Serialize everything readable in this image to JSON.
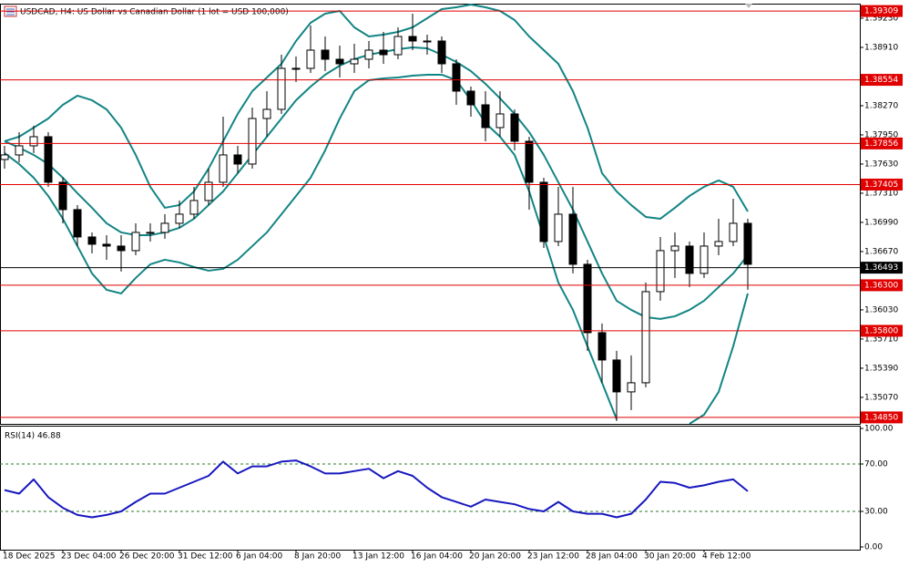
{
  "chart_data": [
    {
      "type": "candlestick",
      "title": "USDCAD, H4:  US Dollar vs Canadian Dollar (1 lot = USD 100,000)",
      "categories": [
        "18 Dec 2025",
        null,
        null,
        null,
        "23 Dec 04:00",
        null,
        null,
        null,
        "26 Dec 20:00",
        null,
        null,
        null,
        "31 Dec 12:00",
        null,
        null,
        null,
        "6 Jan 04:00",
        null,
        null,
        null,
        "8 Jan 20:00",
        null,
        null,
        null,
        "13 Jan 12:00",
        null,
        null,
        null,
        "16 Jan 04:00",
        null,
        null,
        null,
        "20 Jan 20:00",
        null,
        null,
        null,
        "23 Jan 12:00",
        null,
        null,
        null,
        "28 Jan 04:00",
        null,
        null,
        null,
        "30 Jan 20:00",
        null,
        null,
        null,
        "4 Feb 12:00",
        null,
        null,
        null
      ],
      "open": [
        1.3768,
        1.3773,
        1.3783,
        1.3793,
        1.3743,
        1.3713,
        1.3683,
        1.3675,
        1.3673,
        1.3668,
        1.3688,
        1.3688,
        1.3698,
        1.3708,
        1.3723,
        1.3743,
        1.3773,
        1.3763,
        1.3813,
        1.3823,
        1.3868,
        1.3868,
        1.3888,
        1.3878,
        1.3873,
        1.3878,
        1.3888,
        1.3883,
        1.3903,
        1.3898,
        1.3898,
        1.3873,
        1.3843,
        1.3828,
        1.3803,
        1.3818,
        1.3788,
        1.3743,
        1.3678,
        1.3708,
        1.3653,
        1.3578,
        1.3548,
        1.3513,
        1.3523,
        1.3623,
        1.3668,
        1.3673,
        1.3643,
        1.3673,
        1.3678,
        1.3698
      ],
      "high": [
        1.3783,
        1.3798,
        1.3805,
        1.3798,
        1.3748,
        1.3718,
        1.3688,
        1.3685,
        1.3685,
        1.3698,
        1.3698,
        1.3708,
        1.3723,
        1.3738,
        1.3758,
        1.3815,
        1.3783,
        1.3825,
        1.3843,
        1.3883,
        1.3881,
        1.3915,
        1.3903,
        1.3893,
        1.3895,
        1.3898,
        1.3908,
        1.3913,
        1.3928,
        1.3905,
        1.3903,
        1.3878,
        1.3848,
        1.3843,
        1.3843,
        1.3823,
        1.3793,
        1.3748,
        1.3738,
        1.3738,
        1.3658,
        1.3588,
        1.3558,
        1.3553,
        1.3633,
        1.3683,
        1.3688,
        1.3678,
        1.3688,
        1.3703,
        1.3725,
        1.3703
      ],
      "low": [
        1.3758,
        1.3765,
        1.3775,
        1.3738,
        1.3698,
        1.3673,
        1.3665,
        1.3658,
        1.3645,
        1.3663,
        1.3678,
        1.3681,
        1.3693,
        1.3703,
        1.3718,
        1.3738,
        1.3753,
        1.3758,
        1.3793,
        1.3818,
        1.3853,
        1.3863,
        1.3865,
        1.3858,
        1.3863,
        1.3868,
        1.3873,
        1.3878,
        1.3888,
        1.3883,
        1.3863,
        1.3828,
        1.3815,
        1.3788,
        1.3793,
        1.3778,
        1.3713,
        1.3671,
        1.3673,
        1.3643,
        1.3558,
        1.3523,
        1.3481,
        1.3493,
        1.3518,
        1.3613,
        1.3638,
        1.3628,
        1.3638,
        1.3663,
        1.3673,
        1.3625
      ],
      "close": [
        1.3773,
        1.3783,
        1.3793,
        1.3743,
        1.3713,
        1.3683,
        1.3675,
        1.3673,
        1.3668,
        1.3688,
        1.3688,
        1.3698,
        1.3708,
        1.3723,
        1.3743,
        1.3773,
        1.3763,
        1.3813,
        1.3823,
        1.3868,
        1.3868,
        1.3888,
        1.3878,
        1.3873,
        1.3878,
        1.3888,
        1.3883,
        1.3903,
        1.3898,
        1.3898,
        1.3873,
        1.3843,
        1.3828,
        1.3803,
        1.3818,
        1.3788,
        1.3743,
        1.3678,
        1.3708,
        1.3653,
        1.3578,
        1.3548,
        1.3513,
        1.3523,
        1.3623,
        1.3668,
        1.3673,
        1.3643,
        1.3673,
        1.3678,
        1.3698,
        1.3653
      ],
      "upper": [
        1.3788,
        1.3793,
        1.3803,
        1.3813,
        1.3828,
        1.3838,
        1.3833,
        1.3823,
        1.3803,
        1.3773,
        1.3738,
        1.3715,
        1.3718,
        1.3733,
        1.3758,
        1.3788,
        1.3818,
        1.3843,
        1.3858,
        1.3873,
        1.3898,
        1.3918,
        1.3928,
        1.3931,
        1.3913,
        1.3903,
        1.3905,
        1.3908,
        1.3913,
        1.3923,
        1.3933,
        1.3935,
        1.3938,
        1.3935,
        1.3931,
        1.3921,
        1.3903,
        1.3888,
        1.3873,
        1.3843,
        1.3803,
        1.3753,
        1.3733,
        1.3718,
        1.3705,
        1.3703,
        1.3715,
        1.3728,
        1.3738,
        1.3745,
        1.3738,
        1.3711
      ],
      "middle": [
        1.3788,
        1.3781,
        1.3773,
        1.3763,
        1.3748,
        1.3731,
        1.3715,
        1.3698,
        1.3688,
        1.3685,
        1.3685,
        1.3688,
        1.3693,
        1.3703,
        1.3718,
        1.3733,
        1.3753,
        1.3773,
        1.3793,
        1.3813,
        1.3833,
        1.3848,
        1.3861,
        1.3871,
        1.3878,
        1.3883,
        1.3886,
        1.3889,
        1.3891,
        1.389,
        1.3883,
        1.3875,
        1.3865,
        1.3851,
        1.3835,
        1.3818,
        1.3798,
        1.3773,
        1.3743,
        1.3713,
        1.3678,
        1.3643,
        1.3613,
        1.3603,
        1.3595,
        1.3593,
        1.3596,
        1.3603,
        1.3613,
        1.3628,
        1.3643,
        1.3663
      ],
      "lower": [
        1.3775,
        1.3763,
        1.3748,
        1.3728,
        1.3703,
        1.3673,
        1.3643,
        1.3625,
        1.3621,
        1.3638,
        1.3653,
        1.3658,
        1.3655,
        1.365,
        1.3646,
        1.3648,
        1.3658,
        1.3673,
        1.3688,
        1.3708,
        1.3728,
        1.3748,
        1.3778,
        1.3813,
        1.3843,
        1.3855,
        1.3857,
        1.3858,
        1.386,
        1.3861,
        1.3861,
        1.3855,
        1.3833,
        1.3808,
        1.3793,
        1.3773,
        1.3733,
        1.3683,
        1.3633,
        1.3603,
        1.3563,
        1.3523,
        1.3483,
        null,
        null,
        null,
        null,
        1.3478,
        1.3488,
        1.3513,
        1.3563,
        1.3621
      ],
      "band_color": "#138484",
      "ylim": [
        1.34779,
        1.3939
      ],
      "yticks": [
        {
          "value": 1.3923,
          "label": "1.39230"
        },
        {
          "value": 1.3891,
          "label": "1.38910"
        },
        {
          "value": 1.3827,
          "label": "1.38270"
        },
        {
          "value": 1.3795,
          "label": "1.37950"
        },
        {
          "value": 1.3763,
          "label": "1.37630"
        },
        {
          "value": 1.3731,
          "label": "1.37310"
        },
        {
          "value": 1.3699,
          "label": "1.36990"
        },
        {
          "value": 1.3667,
          "label": "1.36670"
        },
        {
          "value": 1.3603,
          "label": "1.36030"
        },
        {
          "value": 1.3571,
          "label": "1.35710"
        },
        {
          "value": 1.3539,
          "label": "1.35390"
        },
        {
          "value": 1.3507,
          "label": "1.35070"
        }
      ],
      "hlines": [
        1.39309,
        1.38554,
        1.37856,
        1.37405,
        {
          "value": 1.363,
          "label": "1.36300"
        },
        {
          "value": 1.358,
          "label": "1.35800"
        },
        {
          "value": 1.3485,
          "label": "1.34850"
        }
      ],
      "hline_color": "#e00000",
      "price_line": 1.36493,
      "price_line_color": "#000000"
    },
    {
      "type": "line",
      "title": "RSI(14) 46.88",
      "values": [
        48,
        45,
        57,
        42,
        33,
        27,
        25,
        27,
        30,
        38,
        45,
        45,
        50,
        55,
        60,
        72,
        62,
        68,
        68,
        72,
        73,
        68,
        62,
        62,
        64,
        66,
        58,
        64,
        60,
        50,
        42,
        38,
        34,
        40,
        38,
        36,
        32,
        30,
        38,
        30,
        28,
        28,
        25,
        28,
        40,
        55,
        54,
        50,
        52,
        55,
        57,
        47
      ],
      "color": "#1818c0",
      "ylim": [
        -2.3,
        102.3
      ],
      "yticks": [
        {
          "value": 100,
          "label": "100.00"
        },
        {
          "value": 70,
          "label": "70.00"
        },
        {
          "value": 30,
          "label": "30.00"
        },
        {
          "value": 0,
          "label": "0.00"
        }
      ],
      "levels": [
        70,
        30
      ]
    }
  ]
}
